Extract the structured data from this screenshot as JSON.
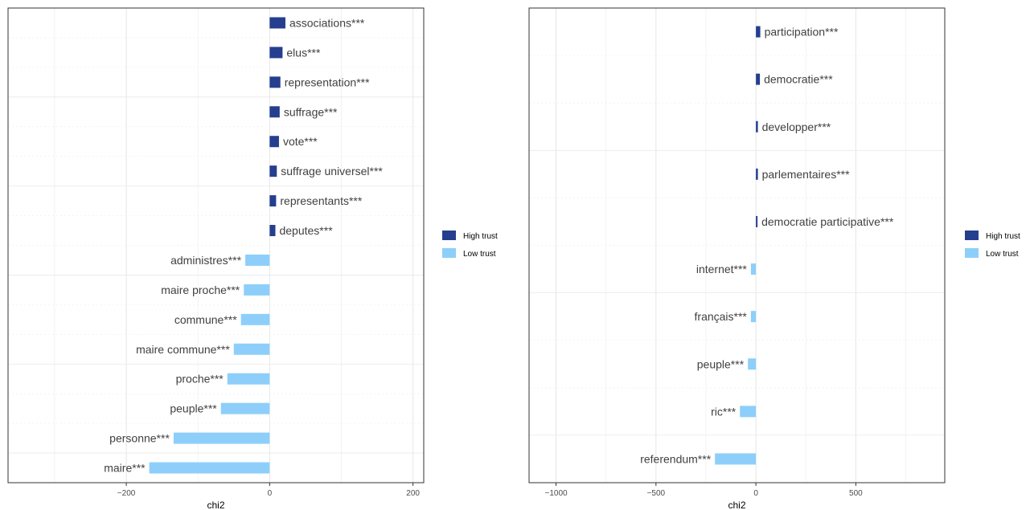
{
  "chart_data": [
    {
      "type": "bar",
      "orientation": "horizontal",
      "xlabel": "chi2",
      "xlim": [
        -365,
        215
      ],
      "xticks": [
        -200,
        0,
        200
      ],
      "xtick_labels": [
        "−200",
        "0",
        "200"
      ],
      "grid": true,
      "legend_position": "right",
      "legend": [
        {
          "name": "High trust",
          "color": "#253f8e"
        },
        {
          "name": "Low trust",
          "color": "#8dcffa"
        }
      ],
      "bars": [
        {
          "label": "associations***",
          "value": 22,
          "group": "High trust"
        },
        {
          "label": "elus***",
          "value": 18,
          "group": "High trust"
        },
        {
          "label": "representation***",
          "value": 15,
          "group": "High trust"
        },
        {
          "label": "suffrage***",
          "value": 14,
          "group": "High trust"
        },
        {
          "label": "vote***",
          "value": 13,
          "group": "High trust"
        },
        {
          "label": "suffrage universel***",
          "value": 10,
          "group": "High trust"
        },
        {
          "label": "representants***",
          "value": 9,
          "group": "High trust"
        },
        {
          "label": "deputes***",
          "value": 8,
          "group": "High trust"
        },
        {
          "label": "administres***",
          "value": -34,
          "group": "Low trust"
        },
        {
          "label": "maire proche***",
          "value": -36,
          "group": "Low trust"
        },
        {
          "label": "commune***",
          "value": -40,
          "group": "Low trust"
        },
        {
          "label": "maire commune***",
          "value": -50,
          "group": "Low trust"
        },
        {
          "label": "proche***",
          "value": -59,
          "group": "Low trust"
        },
        {
          "label": "peuple***",
          "value": -68,
          "group": "Low trust"
        },
        {
          "label": "personne***",
          "value": -134,
          "group": "Low trust"
        },
        {
          "label": "maire***",
          "value": -168,
          "group": "Low trust"
        }
      ]
    },
    {
      "type": "bar",
      "orientation": "horizontal",
      "xlabel": "chi2",
      "xlim": [
        -1135,
        945
      ],
      "xticks": [
        -1000,
        -500,
        0,
        500
      ],
      "xtick_labels": [
        "−1000",
        "−500",
        "0",
        "500"
      ],
      "grid": true,
      "legend_position": "right",
      "legend": [
        {
          "name": "High trust",
          "color": "#253f8e"
        },
        {
          "name": "Low trust",
          "color": "#8dcffa"
        }
      ],
      "bars": [
        {
          "label": "participation***",
          "value": 22,
          "group": "High trust"
        },
        {
          "label": "democratie***",
          "value": 20,
          "group": "High trust"
        },
        {
          "label": "developper***",
          "value": 10,
          "group": "High trust"
        },
        {
          "label": "parlementaires***",
          "value": 10,
          "group": "High trust"
        },
        {
          "label": "democratie participative***",
          "value": 8,
          "group": "High trust"
        },
        {
          "label": "internet***",
          "value": -25,
          "group": "Low trust"
        },
        {
          "label": "français***",
          "value": -25,
          "group": "Low trust"
        },
        {
          "label": "peuple***",
          "value": -40,
          "group": "Low trust"
        },
        {
          "label": "ric***",
          "value": -80,
          "group": "Low trust"
        },
        {
          "label": "referendum***",
          "value": -205,
          "group": "Low trust"
        }
      ]
    }
  ]
}
